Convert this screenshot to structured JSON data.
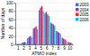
{
  "chart_data": {
    "type": "bar",
    "xlabel": "ATMO index",
    "ylabel": "Number of days",
    "categories": [
      1,
      2,
      3,
      4,
      5,
      6,
      7,
      8,
      9,
      10
    ],
    "series": [
      {
        "name": "2003",
        "color": "#4472c4",
        "values": [
          1,
          4,
          15,
          38,
          82,
          75,
          52,
          32,
          16,
          6
        ]
      },
      {
        "name": "2004",
        "color": "#9932cc",
        "values": [
          1,
          5,
          18,
          40,
          88,
          78,
          50,
          30,
          14,
          5
        ]
      },
      {
        "name": "2005",
        "color": "#ff2020",
        "values": [
          1,
          6,
          20,
          43,
          92,
          72,
          48,
          28,
          12,
          4
        ]
      },
      {
        "name": "2006",
        "color": "#00bfff",
        "values": [
          2,
          5,
          17,
          36,
          80,
          68,
          45,
          25,
          10,
          3
        ]
      }
    ],
    "ylim": [
      0,
      100
    ],
    "yticks": [
      0,
      20,
      40,
      60,
      80,
      100
    ],
    "grid": true,
    "legend": "upper right"
  }
}
